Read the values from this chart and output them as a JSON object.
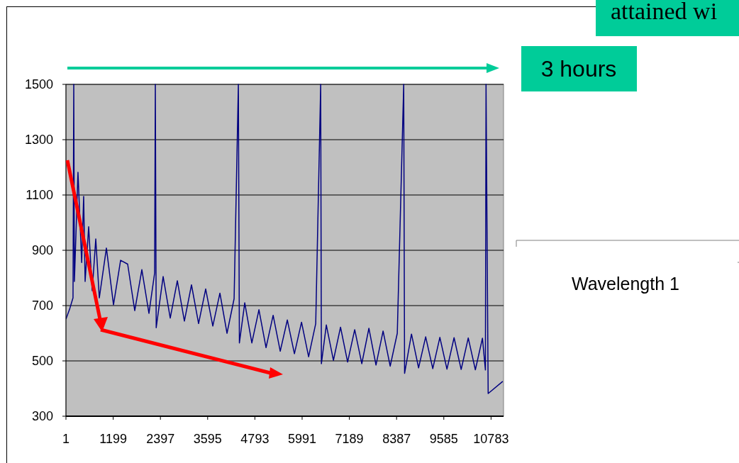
{
  "chart_data": {
    "type": "line",
    "annotations": [
      "attained wi",
      "3 hours",
      "Wavelength 1"
    ],
    "x": [
      1,
      100,
      180,
      199,
      215,
      306,
      400,
      450,
      487,
      577,
      667,
      757,
      847,
      1027,
      1207,
      1387,
      1566,
      1746,
      1926,
      2106,
      2250,
      2268,
      2290,
      2466,
      2646,
      2826,
      3005,
      3185,
      3365,
      3545,
      3726,
      3906,
      4086,
      4266,
      4374,
      4400,
      4536,
      4716,
      4896,
      5076,
      5256,
      5436,
      5616,
      5796,
      5976,
      6156,
      6336,
      6462,
      6480,
      6605,
      6785,
      6965,
      7145,
      7325,
      7505,
      7685,
      7865,
      8045,
      8225,
      8405,
      8568,
      8590,
      8765,
      8945,
      9125,
      9305,
      9485,
      9665,
      9845,
      10025,
      10205,
      10385,
      10565,
      10640,
      10656,
      10710,
      11080
    ],
    "series": [
      {
        "color": "#000080",
        "values": [
          651,
          690,
          728,
          1500,
          787,
          1182,
          856,
          1095,
          787,
          985,
          754,
          941,
          728,
          908,
          703,
          864,
          850,
          682,
          830,
          672,
          818,
          1500,
          620,
          805,
          655,
          790,
          644,
          775,
          635,
          760,
          626,
          745,
          600,
          725,
          1500,
          565,
          710,
          565,
          685,
          548,
          665,
          535,
          648,
          526,
          640,
          515,
          635,
          1500,
          490,
          630,
          502,
          622,
          496,
          613,
          490,
          618,
          485,
          608,
          481,
          600,
          1500,
          455,
          597,
          475,
          587,
          472,
          585,
          470,
          584,
          469,
          583,
          468,
          582,
          467,
          1500,
          382,
          426
        ]
      }
    ],
    "xlim": [
      1,
      11100
    ],
    "xticks": [
      1,
      1199,
      2397,
      3595,
      4793,
      5991,
      7189,
      8387,
      9585,
      10783
    ],
    "ylim": [
      300,
      1500
    ],
    "yticks": [
      300,
      500,
      700,
      900,
      1100,
      1300,
      1500
    ],
    "grid": "y",
    "marker": "none",
    "line_style": "solid"
  }
}
